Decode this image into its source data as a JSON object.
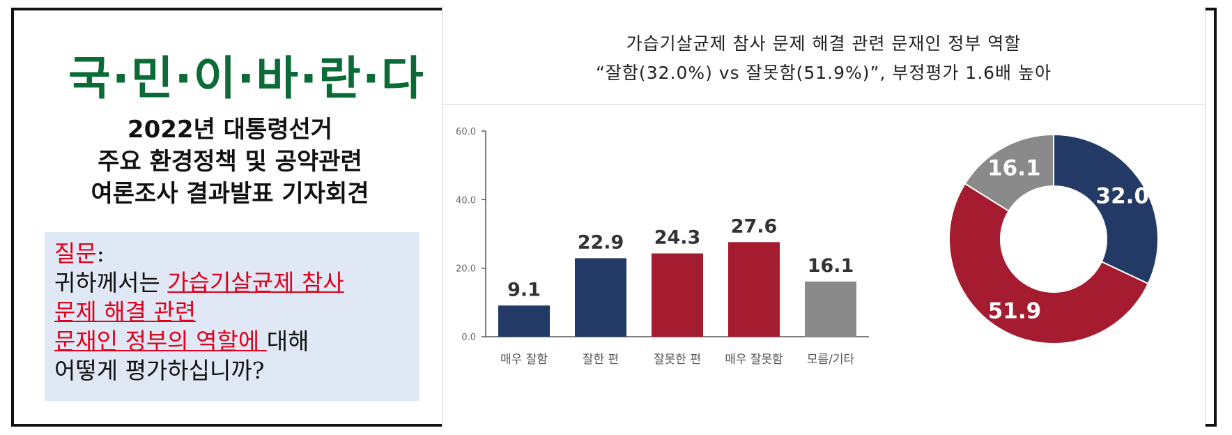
{
  "left": {
    "brand": "국·민·이·바·란·다",
    "subtitle_lines": [
      "2022년 대통령선거",
      "주요 환경정책 및 공약관련",
      "여론조사 결과발표 기자회견"
    ],
    "question": {
      "label": "질문",
      "colon": ":",
      "line1_prefix": "귀하께서는 ",
      "line1_underlined": "가습기살균제 참사",
      "line2_underlined": "문제 해결 관련",
      "line3_underlined": "문재인 정부의 역할에 ",
      "line3_suffix": "대해",
      "line4": "어떻게 평가하십니까?"
    }
  },
  "panel": {
    "title_line1": "가습기살균제 참사 문제 해결 관련 문재인 정부 역할",
    "title_line2": "“잘함(32.0%) vs 잘못함(51.9%)”, 부정평가 1.6배 높아"
  },
  "chart_data": [
    {
      "type": "bar",
      "categories": [
        "매우 잘함",
        "잘한 편",
        "잘못한 편",
        "매우 잘못함",
        "모름/기타"
      ],
      "values": [
        9.1,
        22.9,
        24.3,
        27.6,
        16.1
      ],
      "value_labels": [
        "9.1",
        "22.9",
        "24.3",
        "27.6",
        "16.1"
      ],
      "colors": [
        "#233a66",
        "#233a66",
        "#a51b30",
        "#a51b30",
        "#8a8a8a"
      ],
      "ylim": [
        0,
        60
      ],
      "yticks": [
        0,
        20,
        40,
        60
      ],
      "ytick_labels": [
        "0.0",
        "20.0",
        "40.0",
        "60.0"
      ],
      "grid": false
    },
    {
      "type": "pie",
      "donut": true,
      "labels": [
        "32.0",
        "51.9",
        "16.1"
      ],
      "values": [
        32.0,
        51.9,
        16.1
      ],
      "colors": [
        "#233a66",
        "#a51b30",
        "#8a8a8a"
      ],
      "start_angle_deg": 0
    }
  ]
}
